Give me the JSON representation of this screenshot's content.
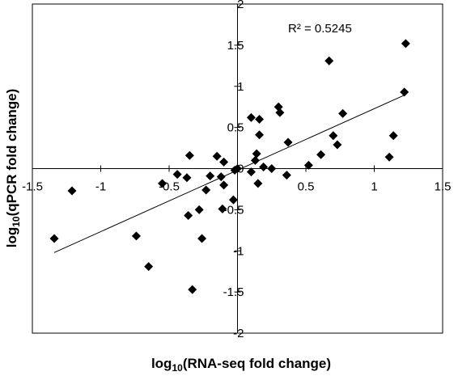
{
  "chart_data": {
    "type": "scatter",
    "xlabel": {
      "prefix": "log",
      "sub": "10",
      "rest": "(RNA-seq fold change)"
    },
    "ylabel": {
      "prefix": "log",
      "sub": "10",
      "rest": "(qPCR fold change)"
    },
    "xlim": [
      -1.5,
      1.5
    ],
    "ylim": [
      -2,
      2
    ],
    "x_ticks": [
      "-1.5",
      "-1",
      "-0.5",
      "0",
      "0.5",
      "1",
      "1.5"
    ],
    "y_ticks": [
      "2",
      "1.5",
      "1",
      "0.5",
      "0",
      "-0.5",
      "-1",
      "-1.5",
      "-2"
    ],
    "annotation": "R² = 0.5245",
    "trendline": {
      "x": [
        -1.34,
        1.23
      ],
      "y": [
        -1.02,
        0.9
      ]
    },
    "grid": false,
    "marker_color": "#000000",
    "points": [
      {
        "x": -1.34,
        "y": -0.85
      },
      {
        "x": -1.21,
        "y": -0.27
      },
      {
        "x": -0.74,
        "y": -0.82
      },
      {
        "x": -0.65,
        "y": -1.19
      },
      {
        "x": -0.55,
        "y": -0.18
      },
      {
        "x": -0.44,
        "y": -0.07
      },
      {
        "x": -0.37,
        "y": -0.11
      },
      {
        "x": -0.35,
        "y": 0.16
      },
      {
        "x": -0.36,
        "y": -0.57
      },
      {
        "x": -0.33,
        "y": -1.47
      },
      {
        "x": -0.28,
        "y": -0.5
      },
      {
        "x": -0.26,
        "y": -0.85
      },
      {
        "x": -0.23,
        "y": -0.26
      },
      {
        "x": -0.2,
        "y": -0.09
      },
      {
        "x": -0.15,
        "y": 0.15
      },
      {
        "x": -0.12,
        "y": -0.1
      },
      {
        "x": -0.11,
        "y": -0.49
      },
      {
        "x": -0.1,
        "y": 0.08
      },
      {
        "x": -0.1,
        "y": -0.2
      },
      {
        "x": -0.03,
        "y": -0.38
      },
      {
        "x": -0.02,
        "y": -0.02
      },
      {
        "x": 0.0,
        "y": 0.0
      },
      {
        "x": 0.1,
        "y": -0.04
      },
      {
        "x": 0.1,
        "y": 0.62
      },
      {
        "x": 0.13,
        "y": 0.1
      },
      {
        "x": 0.14,
        "y": 0.18
      },
      {
        "x": 0.15,
        "y": -0.18
      },
      {
        "x": 0.16,
        "y": 0.41
      },
      {
        "x": 0.16,
        "y": 0.6
      },
      {
        "x": 0.19,
        "y": 0.02
      },
      {
        "x": 0.25,
        "y": 0.0
      },
      {
        "x": 0.3,
        "y": 0.75
      },
      {
        "x": 0.31,
        "y": 0.68
      },
      {
        "x": 0.36,
        "y": -0.08
      },
      {
        "x": 0.37,
        "y": 0.32
      },
      {
        "x": 0.52,
        "y": 0.04
      },
      {
        "x": 0.61,
        "y": 0.17
      },
      {
        "x": 0.67,
        "y": 1.31
      },
      {
        "x": 0.7,
        "y": 0.4
      },
      {
        "x": 0.73,
        "y": 0.29
      },
      {
        "x": 0.77,
        "y": 0.67
      },
      {
        "x": 1.11,
        "y": 0.14
      },
      {
        "x": 1.14,
        "y": 0.4
      },
      {
        "x": 1.22,
        "y": 0.93
      },
      {
        "x": 1.23,
        "y": 1.52
      }
    ]
  }
}
